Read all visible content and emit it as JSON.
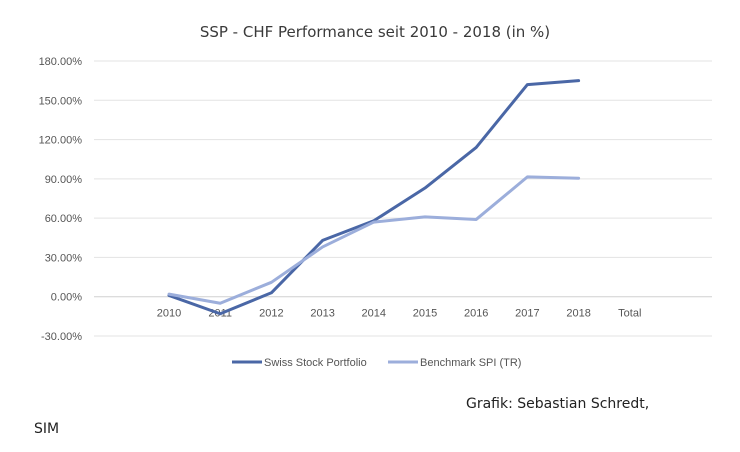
{
  "chart_data": {
    "type": "line",
    "title": "SSP - CHF Performance seit 2010 - 2018 (in %)",
    "categories": [
      "2010",
      "2011",
      "2012",
      "2013",
      "2014",
      "2015",
      "2016",
      "2017",
      "2018",
      "Total"
    ],
    "series": [
      {
        "name": "Swiss Stock Portfolio",
        "color": "#4a67a6",
        "values": [
          1.0,
          -13.0,
          3.0,
          43.0,
          58.0,
          83.0,
          114.0,
          162.0,
          165.0,
          null
        ]
      },
      {
        "name": "Benchmark SPI (TR)",
        "color": "#9caedb",
        "values": [
          2.0,
          -5.0,
          11.0,
          38.0,
          57.0,
          61.0,
          59.0,
          91.5,
          90.5,
          null
        ]
      }
    ],
    "yticks": [
      180,
      150,
      120,
      90,
      60,
      30,
      0,
      -30
    ],
    "ytick_labels": [
      "180.00%",
      "150.00%",
      "120.00%",
      "90.00%",
      "60.00%",
      "30.00%",
      "0.00%",
      "-30.00%"
    ],
    "ylim": [
      -30,
      180
    ],
    "grid": true,
    "legend_position": "bottom"
  },
  "credit": {
    "line1": "Grafik: Sebastian Schredt,",
    "line2": "SIM"
  }
}
